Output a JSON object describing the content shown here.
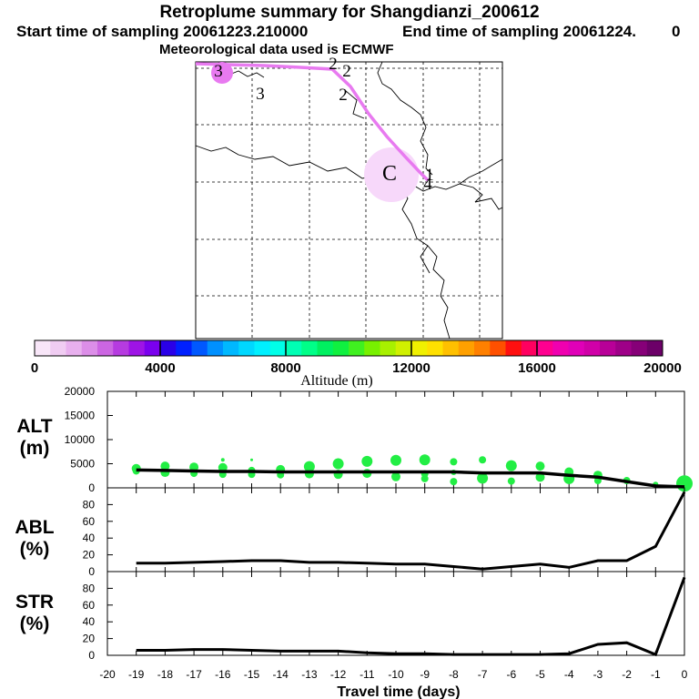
{
  "header": {
    "title": "Retroplume summary for Shangdianzi_200612",
    "start": "Start time of sampling 20061223.210000",
    "end": "End time of sampling 20061224.",
    "end_value": "0",
    "met": "Meteorological data used is ECMWF"
  },
  "map": {
    "labels": [
      {
        "text": "3",
        "id": "label-3a"
      },
      {
        "text": "3",
        "id": "label-3b"
      },
      {
        "text": "2",
        "id": "label-2a"
      },
      {
        "text": "2",
        "id": "label-2b"
      },
      {
        "text": "2",
        "id": "label-2c"
      },
      {
        "text": "C",
        "id": "label-c"
      },
      {
        "text": "1",
        "id": "label-1"
      },
      {
        "text": "4",
        "id": "label-4"
      }
    ],
    "track_color": "#e87af0",
    "plume_color": "#f7d8fa"
  },
  "colorbar": {
    "ticks": [
      "0",
      "4000",
      "8000",
      "12000",
      "16000",
      "20000"
    ],
    "label": "Altitude (m)",
    "colors": [
      "#f8e6f8",
      "#f0ccf2",
      "#e8b0ee",
      "#dc8ee8",
      "#cc66e2",
      "#b63be0",
      "#9e14e6",
      "#7a00ee",
      "#2a00e8",
      "#0020ff",
      "#0058ff",
      "#0090ff",
      "#00b8ff",
      "#00d8ff",
      "#00f0ff",
      "#00ffe8",
      "#00ffb4",
      "#00ff88",
      "#00f060",
      "#10f040",
      "#40f020",
      "#78f000",
      "#a8f000",
      "#d0f000",
      "#f0f000",
      "#ffe000",
      "#ffc000",
      "#ffa000",
      "#ff8000",
      "#ff5000",
      "#ff1010",
      "#ff0060",
      "#ff0090",
      "#f000b0",
      "#e000b8",
      "#d000a8",
      "#b80098",
      "#9e0088",
      "#860078",
      "#6c0068"
    ]
  },
  "chart_data": [
    {
      "type": "scatter",
      "title": "ALT",
      "ylabel": "ALT (m)",
      "ylabel_lines": [
        "ALT",
        "(m)"
      ],
      "ylim": [
        0,
        20000
      ],
      "yticks": [
        "20000",
        "15000",
        "10000",
        "5000",
        "0"
      ],
      "line_x": [
        -19,
        -18,
        -17,
        -16,
        -15,
        -14,
        -13,
        -12,
        -11,
        -10,
        -9,
        -8,
        -7,
        -6,
        -5,
        -4,
        -3,
        -2,
        -1,
        0
      ],
      "line_y": [
        3700,
        3600,
        3500,
        3400,
        3400,
        3300,
        3300,
        3300,
        3300,
        3300,
        3300,
        3300,
        3100,
        3100,
        3100,
        2600,
        2200,
        1300,
        400,
        200
      ],
      "points": [
        {
          "x": -19,
          "y": 4000,
          "size": 5
        },
        {
          "x": -19,
          "y": 3500,
          "size": 4
        },
        {
          "x": -18,
          "y": 4500,
          "size": 5
        },
        {
          "x": -18,
          "y": 3200,
          "size": 5
        },
        {
          "x": -17,
          "y": 4300,
          "size": 5
        },
        {
          "x": -17,
          "y": 3000,
          "size": 4
        },
        {
          "x": -16,
          "y": 5800,
          "size": 2
        },
        {
          "x": -16,
          "y": 4200,
          "size": 5
        },
        {
          "x": -16,
          "y": 2800,
          "size": 4
        },
        {
          "x": -15,
          "y": 5800,
          "size": 1.5
        },
        {
          "x": -15,
          "y": 3600,
          "size": 4
        },
        {
          "x": -15,
          "y": 2800,
          "size": 4
        },
        {
          "x": -14,
          "y": 3800,
          "size": 5
        },
        {
          "x": -14,
          "y": 2700,
          "size": 4
        },
        {
          "x": -13,
          "y": 4400,
          "size": 6
        },
        {
          "x": -13,
          "y": 2900,
          "size": 5
        },
        {
          "x": -12,
          "y": 5000,
          "size": 6
        },
        {
          "x": -12,
          "y": 2800,
          "size": 5
        },
        {
          "x": -11,
          "y": 5500,
          "size": 6
        },
        {
          "x": -11,
          "y": 3000,
          "size": 5
        },
        {
          "x": -10,
          "y": 5700,
          "size": 6
        },
        {
          "x": -10,
          "y": 2300,
          "size": 5
        },
        {
          "x": -9,
          "y": 5800,
          "size": 6
        },
        {
          "x": -9,
          "y": 2900,
          "size": 4
        },
        {
          "x": -9,
          "y": 1900,
          "size": 4
        },
        {
          "x": -8,
          "y": 5400,
          "size": 4
        },
        {
          "x": -8,
          "y": 3200,
          "size": 3
        },
        {
          "x": -8,
          "y": 1300,
          "size": 4
        },
        {
          "x": -7,
          "y": 5800,
          "size": 4
        },
        {
          "x": -7,
          "y": 2000,
          "size": 6
        },
        {
          "x": -6,
          "y": 4600,
          "size": 6
        },
        {
          "x": -6,
          "y": 1400,
          "size": 4
        },
        {
          "x": -5,
          "y": 4500,
          "size": 5
        },
        {
          "x": -5,
          "y": 2200,
          "size": 5
        },
        {
          "x": -4,
          "y": 3300,
          "size": 5
        },
        {
          "x": -4,
          "y": 1900,
          "size": 6
        },
        {
          "x": -3,
          "y": 2600,
          "size": 5
        },
        {
          "x": -3,
          "y": 1500,
          "size": 4
        },
        {
          "x": -2,
          "y": 1500,
          "size": 4
        },
        {
          "x": -1,
          "y": 700,
          "size": 3
        },
        {
          "x": 0,
          "y": 900,
          "size": 9
        }
      ],
      "point_color": "#22ee44"
    },
    {
      "type": "line",
      "title": "ABL",
      "ylabel": "ABL (%)",
      "ylabel_lines": [
        "ABL",
        "(%)"
      ],
      "ylim": [
        0,
        100
      ],
      "yticks": [
        "80",
        "60",
        "40",
        "20",
        "0"
      ],
      "x": [
        -19,
        -18,
        -17,
        -16,
        -15,
        -14,
        -13,
        -12,
        -11,
        -10,
        -9,
        -8,
        -7,
        -6,
        -5,
        -4,
        -3,
        -2,
        -1,
        0
      ],
      "y": [
        10,
        10,
        11,
        12,
        13,
        13,
        11,
        11,
        10,
        9,
        9,
        6,
        3,
        6,
        9,
        5,
        13,
        13,
        30,
        95
      ]
    },
    {
      "type": "line",
      "title": "STR",
      "ylabel": "STR (%)",
      "ylabel_lines": [
        "STR",
        "(%)"
      ],
      "ylim": [
        0,
        100
      ],
      "yticks": [
        "80",
        "60",
        "40",
        "20",
        "0"
      ],
      "x": [
        -19,
        -18,
        -17,
        -16,
        -15,
        -14,
        -13,
        -12,
        -11,
        -10,
        -9,
        -8,
        -7,
        -6,
        -5,
        -4,
        -3,
        -2,
        -1,
        0
      ],
      "y": [
        6,
        6,
        7,
        7,
        6,
        5,
        5,
        5,
        3,
        2,
        2,
        1,
        1,
        1,
        1,
        2,
        13,
        15,
        1,
        93
      ]
    }
  ],
  "xaxis": {
    "ticks": [
      "-20",
      "-19",
      "-18",
      "-17",
      "-16",
      "-15",
      "-14",
      "-13",
      "-12",
      "-11",
      "-10",
      "-9",
      "-8",
      "-7",
      "-6",
      "-5",
      "-4",
      "-3",
      "-2",
      "-1",
      "0"
    ],
    "label": "Travel time (days)"
  }
}
